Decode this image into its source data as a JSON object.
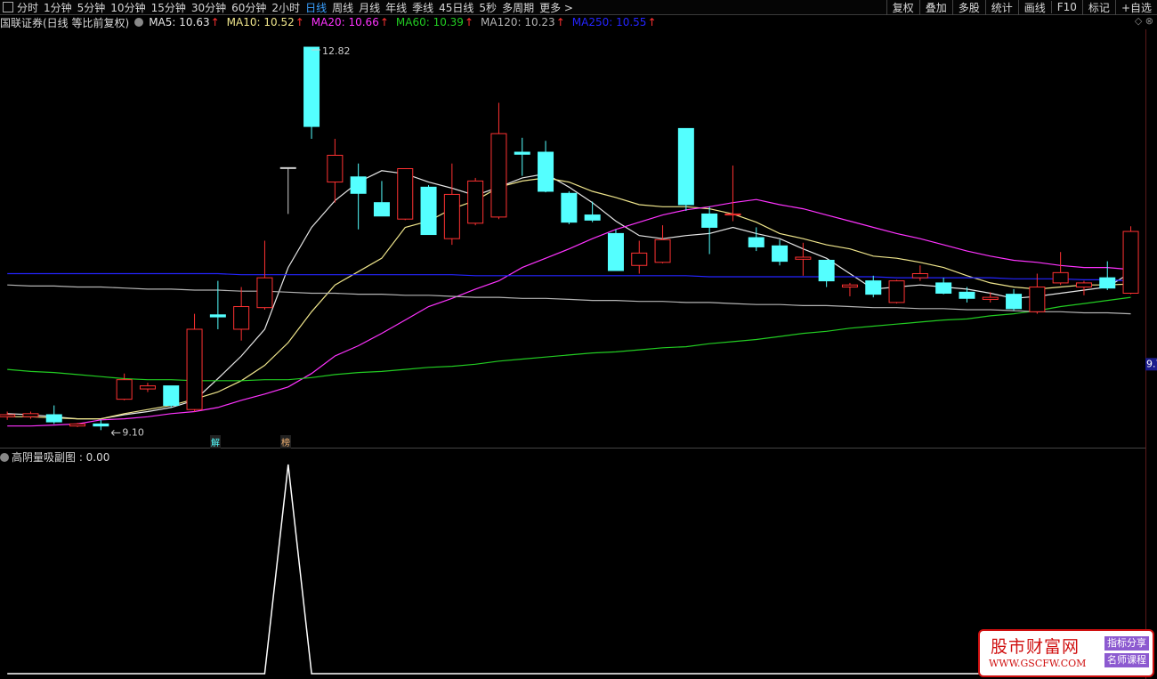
{
  "toolbar": {
    "tabs": [
      {
        "label": "分时"
      },
      {
        "label": "1分钟"
      },
      {
        "label": "5分钟"
      },
      {
        "label": "10分钟"
      },
      {
        "label": "15分钟"
      },
      {
        "label": "30分钟"
      },
      {
        "label": "60分钟"
      },
      {
        "label": "2小时"
      },
      {
        "label": "日线",
        "active": true
      },
      {
        "label": "周线"
      },
      {
        "label": "月线"
      },
      {
        "label": "年线"
      },
      {
        "label": "季线"
      },
      {
        "label": "45日线"
      },
      {
        "label": "5秒"
      },
      {
        "label": "多周期"
      },
      {
        "label": "更多 >"
      }
    ],
    "tools": [
      "复权",
      "叠加",
      "多股",
      "统计",
      "画线",
      "F10",
      "标记",
      "+自选"
    ]
  },
  "stock_title": "国联证券(日线 等比前复权)",
  "markers": [
    "解",
    "榜"
  ],
  "watermark": {
    "name": "股市财富网",
    "url": "WWW.GSCFW.COM",
    "tags": [
      "指标分享",
      "名师课程"
    ]
  },
  "chart_data": [
    {
      "type": "candlestick",
      "ylim": [
        8.93,
        13.14
      ],
      "yticks": [
        {
          "value": 9.74,
          "label": "9.7"
        }
      ],
      "up_color": "#ff3232",
      "down_color": "#54ffff",
      "flat_color": "#d0d0d0",
      "annotations": {
        "high_label": "12.82",
        "low_label": "9.10"
      },
      "candles": {
        "open": [
          9.23,
          9.23,
          9.25,
          9.14,
          9.16,
          9.4,
          9.5,
          9.53,
          9.3,
          10.22,
          10.08,
          10.29,
          11.65,
          12.82,
          11.51,
          11.56,
          11.31,
          11.15,
          11.46,
          10.96,
          11.11,
          11.17,
          11.8,
          11.8,
          11.4,
          11.19,
          11.01,
          10.7,
          10.73,
          12.03,
          11.2,
          11.19,
          10.97,
          10.89,
          10.76,
          10.75,
          10.49,
          10.55,
          10.34,
          10.58,
          10.53,
          10.44,
          10.37,
          10.42,
          10.25,
          10.53,
          10.49,
          10.58,
          10.43
        ],
        "high": [
          9.28,
          9.28,
          9.34,
          9.17,
          9.2,
          9.65,
          9.56,
          9.53,
          10.23,
          10.55,
          10.49,
          10.94,
          11.65,
          12.82,
          11.93,
          11.69,
          11.52,
          11.64,
          11.48,
          11.69,
          11.55,
          12.28,
          11.94,
          11.91,
          11.42,
          11.32,
          11.05,
          10.94,
          11.09,
          12.03,
          11.27,
          11.67,
          11.07,
          10.95,
          10.92,
          10.75,
          10.53,
          10.6,
          10.56,
          10.7,
          10.58,
          10.49,
          10.44,
          10.47,
          10.62,
          10.83,
          10.55,
          10.74,
          11.08
        ],
        "low": [
          9.2,
          9.21,
          9.16,
          9.13,
          9.1,
          9.39,
          9.47,
          9.32,
          9.28,
          10.08,
          9.97,
          10.27,
          11.2,
          11.93,
          11.31,
          11.05,
          11.18,
          11.14,
          11.0,
          10.9,
          11.09,
          11.15,
          11.57,
          11.41,
          11.1,
          11.12,
          10.65,
          10.62,
          10.72,
          11.23,
          10.81,
          11.13,
          10.84,
          10.7,
          10.6,
          10.49,
          10.4,
          10.39,
          10.33,
          10.55,
          10.42,
          10.34,
          10.34,
          10.26,
          10.23,
          10.51,
          10.41,
          10.46,
          10.42
        ],
        "close": [
          9.25,
          9.26,
          9.18,
          9.16,
          9.14,
          9.59,
          9.53,
          9.34,
          10.08,
          10.2,
          10.3,
          10.58,
          11.65,
          12.05,
          11.77,
          11.4,
          11.18,
          11.64,
          11.0,
          11.39,
          11.52,
          11.98,
          11.78,
          11.42,
          11.12,
          11.14,
          10.65,
          10.82,
          10.95,
          11.29,
          11.07,
          11.2,
          10.88,
          10.74,
          10.78,
          10.55,
          10.51,
          10.42,
          10.55,
          10.62,
          10.43,
          10.38,
          10.39,
          10.28,
          10.49,
          10.63,
          10.53,
          10.48,
          11.03
        ]
      },
      "trend_color": "#ff3232",
      "series": [
        {
          "name": "MA5: 10.63",
          "trend": "↑",
          "color": "#e6e6e6",
          "values": [
            9.26,
            9.25,
            9.23,
            9.21,
            9.21,
            9.25,
            9.28,
            9.32,
            9.39,
            9.6,
            9.82,
            10.08,
            10.68,
            11.07,
            11.33,
            11.51,
            11.62,
            11.59,
            11.51,
            11.45,
            11.38,
            11.46,
            11.55,
            11.59,
            11.46,
            11.31,
            11.13,
            10.99,
            10.96,
            10.99,
            11.01,
            11.07,
            11.01,
            10.96,
            10.86,
            10.77,
            10.62,
            10.47,
            10.49,
            10.51,
            10.49,
            10.47,
            10.43,
            10.38,
            10.4,
            10.43,
            10.46,
            10.49,
            10.63
          ]
        },
        {
          "name": "MA10: 10.52",
          "trend": "↑",
          "color": "#f0e68c",
          "values": [
            9.23,
            9.23,
            9.22,
            9.21,
            9.21,
            9.26,
            9.3,
            9.34,
            9.4,
            9.47,
            9.58,
            9.73,
            9.95,
            10.25,
            10.51,
            10.64,
            10.77,
            11.07,
            11.13,
            11.25,
            11.33,
            11.46,
            11.52,
            11.55,
            11.51,
            11.42,
            11.36,
            11.29,
            11.27,
            11.27,
            11.25,
            11.2,
            11.12,
            11.01,
            10.96,
            10.9,
            10.86,
            10.79,
            10.77,
            10.73,
            10.68,
            10.6,
            10.53,
            10.49,
            10.47,
            10.49,
            10.51,
            10.51,
            10.52
          ]
        },
        {
          "name": "MA20: 10.66",
          "trend": "↑",
          "color": "#ff33ff",
          "values": [
            9.14,
            9.14,
            9.15,
            9.16,
            9.2,
            9.21,
            9.23,
            9.26,
            9.28,
            9.32,
            9.39,
            9.45,
            9.52,
            9.65,
            9.82,
            9.92,
            10.04,
            10.17,
            10.3,
            10.38,
            10.47,
            10.55,
            10.68,
            10.77,
            10.86,
            10.96,
            11.05,
            11.12,
            11.19,
            11.24,
            11.27,
            11.31,
            11.34,
            11.29,
            11.25,
            11.19,
            11.13,
            11.07,
            11.01,
            10.96,
            10.9,
            10.84,
            10.79,
            10.75,
            10.73,
            10.7,
            10.68,
            10.68,
            10.66
          ]
        },
        {
          "name": "MA60: 10.39",
          "trend": "↑",
          "color": "#22cc22",
          "values": [
            9.69,
            9.67,
            9.66,
            9.64,
            9.62,
            9.6,
            9.59,
            9.59,
            9.58,
            9.58,
            9.58,
            9.59,
            9.59,
            9.61,
            9.64,
            9.66,
            9.67,
            9.69,
            9.71,
            9.72,
            9.74,
            9.77,
            9.79,
            9.81,
            9.83,
            9.85,
            9.86,
            9.88,
            9.9,
            9.91,
            9.94,
            9.96,
            9.98,
            10.01,
            10.04,
            10.06,
            10.09,
            10.11,
            10.13,
            10.15,
            10.17,
            10.18,
            10.21,
            10.23,
            10.26,
            10.3,
            10.33,
            10.36,
            10.39
          ]
        },
        {
          "name": "MA120: 10.23",
          "trend": "↑",
          "color": "#b4b4b4",
          "values": [
            10.51,
            10.5,
            10.5,
            10.49,
            10.49,
            10.48,
            10.47,
            10.47,
            10.46,
            10.46,
            10.45,
            10.45,
            10.44,
            10.43,
            10.43,
            10.42,
            10.42,
            10.41,
            10.41,
            10.4,
            10.39,
            10.39,
            10.38,
            10.38,
            10.37,
            10.36,
            10.36,
            10.35,
            10.35,
            10.34,
            10.34,
            10.33,
            10.32,
            10.32,
            10.31,
            10.31,
            10.3,
            10.29,
            10.29,
            10.28,
            10.28,
            10.27,
            10.27,
            10.26,
            10.25,
            10.25,
            10.24,
            10.24,
            10.23
          ]
        },
        {
          "name": "MA250: 10.55",
          "trend": "↑",
          "color": "#2424ff",
          "values": [
            10.62,
            10.62,
            10.62,
            10.62,
            10.62,
            10.62,
            10.62,
            10.62,
            10.62,
            10.62,
            10.61,
            10.61,
            10.61,
            10.61,
            10.61,
            10.61,
            10.61,
            10.61,
            10.61,
            10.61,
            10.6,
            10.6,
            10.6,
            10.6,
            10.6,
            10.6,
            10.6,
            10.6,
            10.6,
            10.6,
            10.59,
            10.59,
            10.59,
            10.59,
            10.59,
            10.59,
            10.59,
            10.59,
            10.58,
            10.58,
            10.58,
            10.58,
            10.58,
            10.57,
            10.57,
            10.57,
            10.56,
            10.56,
            10.55
          ]
        }
      ]
    },
    {
      "type": "line",
      "title": "高阴量吸副图 : 0.00",
      "color": "#ffffff",
      "ylim": [
        0,
        1
      ],
      "values": [
        0,
        0,
        0,
        0,
        0,
        0,
        0,
        0,
        0,
        0,
        0,
        0,
        1,
        0,
        0,
        0,
        0,
        0,
        0,
        0,
        0,
        0,
        0,
        0,
        0,
        0,
        0,
        0,
        0,
        0,
        0,
        0,
        0,
        0,
        0,
        0,
        0,
        0,
        0,
        0,
        0,
        0,
        0,
        0,
        0,
        0,
        0,
        0,
        0
      ]
    }
  ]
}
